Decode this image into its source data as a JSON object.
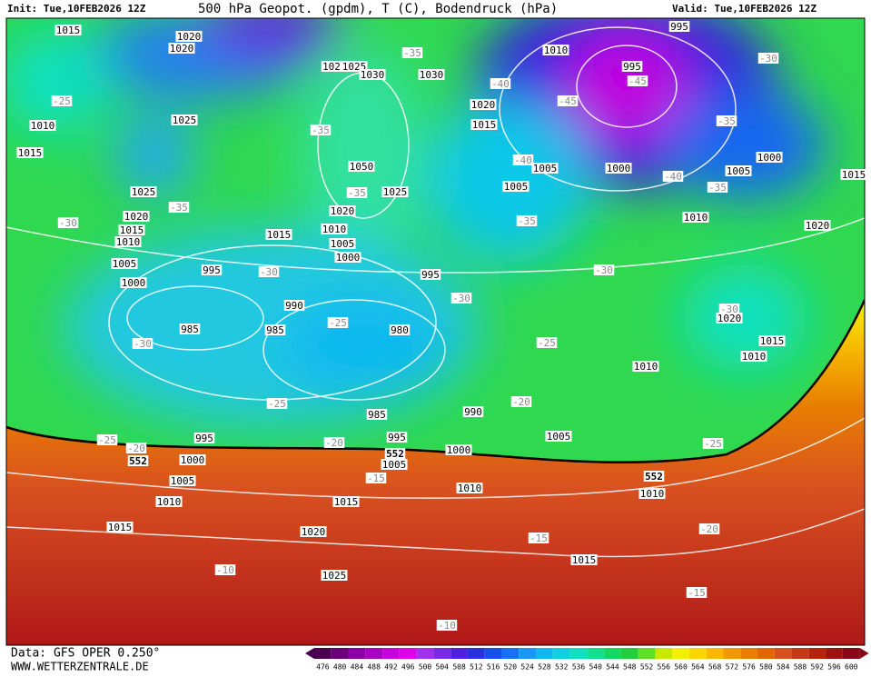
{
  "header": {
    "init": "Init: Tue,10FEB2026 12Z",
    "title": "500 hPa Geopot. (gpdm), T (C), Bodendruck (hPa)",
    "valid": "Valid: Tue,10FEB2026 12Z"
  },
  "footer": {
    "data": "Data: GFS OPER 0.250°",
    "site": "WWW.WETTERZENTRALE.DE"
  },
  "legend": {
    "ticks": [
      476,
      480,
      484,
      488,
      492,
      496,
      500,
      504,
      508,
      512,
      516,
      520,
      524,
      528,
      532,
      536,
      540,
      544,
      548,
      552,
      556,
      560,
      564,
      568,
      572,
      576,
      580,
      584,
      588,
      592,
      596,
      600
    ],
    "colors": [
      "#4a0050",
      "#6a0078",
      "#8a00a0",
      "#a800c0",
      "#c800e0",
      "#e000f0",
      "#a030f0",
      "#7828e8",
      "#5020e0",
      "#2830e0",
      "#1850f0",
      "#1870f8",
      "#1898f8",
      "#10b8f0",
      "#10d0e0",
      "#10e0c0",
      "#10e090",
      "#10d860",
      "#20d040",
      "#60e020",
      "#c8e800",
      "#f0f000",
      "#f8d800",
      "#f8b800",
      "#f09800",
      "#e88000",
      "#e06800",
      "#d85020",
      "#c83818",
      "#b82010",
      "#a01010",
      "#880818"
    ]
  },
  "pressure_labels": [
    "1015",
    "1020",
    "1020",
    "102",
    "1025",
    "1030",
    "1030",
    "1025",
    "1010",
    "1015",
    "1025",
    "1020",
    "1015",
    "1010",
    "1005",
    "1000",
    "1050",
    "1025",
    "1020",
    "1015",
    "1010",
    "1005",
    "1000",
    "995",
    "995",
    "990",
    "985",
    "985",
    "980",
    "1010",
    "1020",
    "1015",
    "995",
    "995",
    "1005",
    "1005",
    "1000",
    "1005",
    "1000",
    "1015",
    "1010",
    "1020",
    "1020",
    "1015",
    "1010",
    "1010",
    "1005",
    "990",
    "985",
    "995",
    "995",
    "1000",
    "1000",
    "1005",
    "1005",
    "1010",
    "1010",
    "1010",
    "1015",
    "1015",
    "1020",
    "1025",
    "1015"
  ],
  "temperature_labels": [
    "-35",
    "-40",
    "-45",
    "-45",
    "-30",
    "-25",
    "-35",
    "-35",
    "-40",
    "-40",
    "-35",
    "-35",
    "-30",
    "-35",
    "-35",
    "-30",
    "-30",
    "-30",
    "-30",
    "-25",
    "-30",
    "-25",
    "-25",
    "-20",
    "-25",
    "-20",
    "-20",
    "-25",
    "-15",
    "-20",
    "-15",
    "-10",
    "-15",
    "-10"
  ],
  "geopotential_labels": [
    "552",
    "552",
    "552"
  ]
}
